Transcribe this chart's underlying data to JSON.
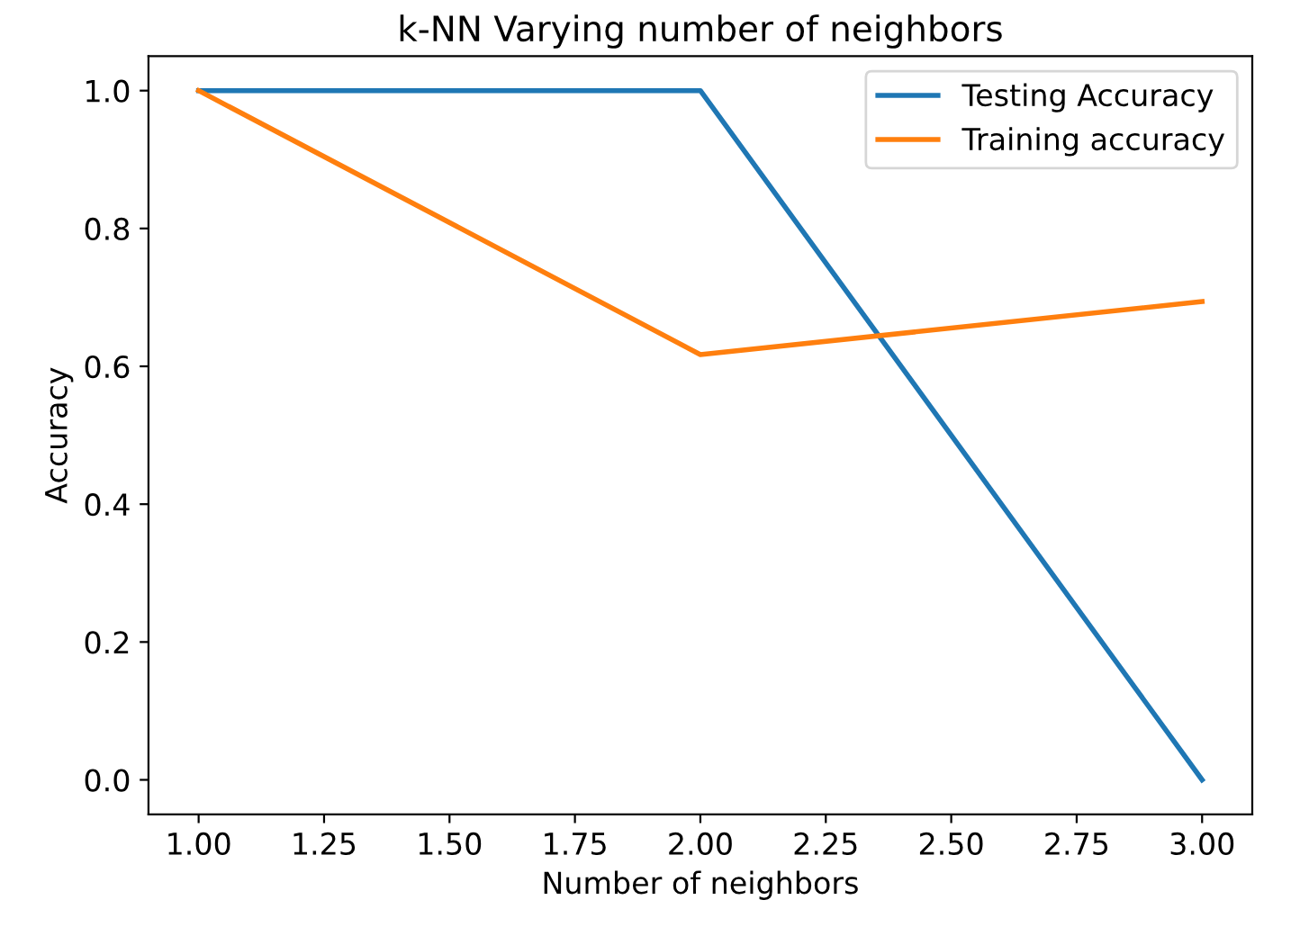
{
  "chart_data": {
    "type": "line",
    "title": "k-NN Varying number of neighbors",
    "xlabel": "Number of neighbors",
    "ylabel": "Accuracy",
    "x": [
      1,
      2,
      3
    ],
    "series": [
      {
        "name": "Testing Accuracy",
        "color": "#1f77b4",
        "values": [
          1.0,
          1.0,
          0.0
        ]
      },
      {
        "name": "Training accuracy",
        "color": "#ff7f0e",
        "values": [
          1.0,
          0.617,
          0.694
        ]
      }
    ],
    "xlim": [
      0.9,
      3.1
    ],
    "ylim": [
      -0.05,
      1.05
    ],
    "xticks": [
      {
        "value": 1,
        "label": "1.00"
      },
      {
        "value": 1.25,
        "label": "1.25"
      },
      {
        "value": 1.5,
        "label": "1.50"
      },
      {
        "value": 1.75,
        "label": "1.75"
      },
      {
        "value": 2,
        "label": "2.00"
      },
      {
        "value": 2.25,
        "label": "2.25"
      },
      {
        "value": 2.5,
        "label": "2.50"
      },
      {
        "value": 2.75,
        "label": "2.75"
      },
      {
        "value": 3,
        "label": "3.00"
      }
    ],
    "yticks": [
      {
        "value": 0,
        "label": "0.0"
      },
      {
        "value": 0.2,
        "label": "0.2"
      },
      {
        "value": 0.4,
        "label": "0.4"
      },
      {
        "value": 0.6,
        "label": "0.6"
      },
      {
        "value": 0.8,
        "label": "0.8"
      },
      {
        "value": 1,
        "label": "1.0"
      }
    ],
    "legend": "top right",
    "grid": false,
    "marker": "none",
    "line_style": "solid"
  }
}
